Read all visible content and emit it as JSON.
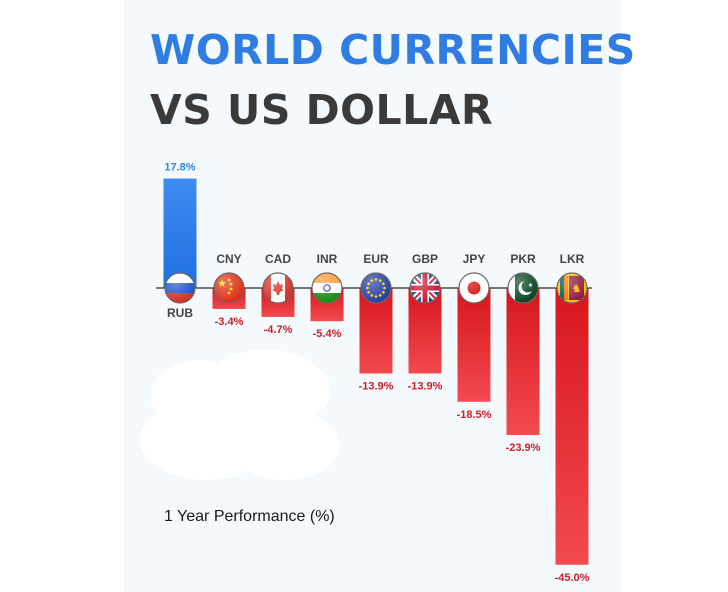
{
  "title_line1": "WORLD CURRENCIES",
  "title_line2": "VS US DOLLAR",
  "subtitle": "1 Year Performance (%)",
  "colors": {
    "title_accent": "#2f7de2",
    "title_dark": "#3a3a3a",
    "positive": "#1f6fe0",
    "negative": "#e0262b",
    "positive_label": "#2f86d8",
    "negative_label": "#c8202a",
    "currency_label": "#444444",
    "background": "#f4f9fd"
  },
  "chart_data": {
    "type": "bar",
    "title": "WORLD CURRENCIES VS US DOLLAR",
    "ylabel": "1 Year Performance (%)",
    "categories": [
      "RUB",
      "CNY",
      "CAD",
      "INR",
      "EUR",
      "GBP",
      "JPY",
      "PKR",
      "LKR"
    ],
    "values": [
      17.8,
      -3.4,
      -4.7,
      -5.4,
      -13.9,
      -13.9,
      -18.5,
      -23.9,
      -45.0
    ],
    "value_labels": [
      "17.8%",
      "-3.4%",
      "-4.7%",
      "-5.4%",
      "-13.9%",
      "-13.9%",
      "-18.5%",
      "-23.9%",
      "-45.0%"
    ],
    "flags": [
      "russia-flag-icon",
      "china-flag-icon",
      "canada-flag-icon",
      "india-flag-icon",
      "eu-flag-icon",
      "uk-flag-icon",
      "japan-flag-icon",
      "pakistan-flag-icon",
      "sri-lanka-flag-icon"
    ],
    "ylim": [
      -45,
      17.8
    ],
    "grid": false,
    "legend": "none"
  }
}
